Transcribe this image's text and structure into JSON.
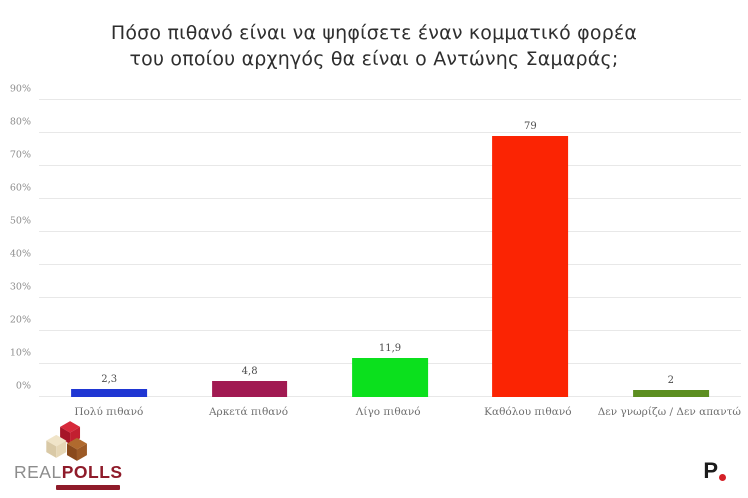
{
  "title": {
    "line1": "Πόσο πιθανό είναι να ψηφίσετε έναν κομματικό φορέα",
    "line2": "του οποίου αρχηγός θα είναι ο Αντώνης Σαμαράς;"
  },
  "chart_data": {
    "type": "bar",
    "title": "Πόσο πιθανό είναι να ψηφίσετε έναν κομματικό φορέα του οποίου αρχηγός θα είναι ο Αντώνης Σαμαράς;",
    "categories": [
      "Πολύ πιθανό",
      "Αρκετά πιθανό",
      "Λίγο πιθανό",
      "Καθόλου πιθανό",
      "Δεν γνωρίζω / Δεν απαντώ"
    ],
    "values": [
      2.3,
      4.8,
      11.9,
      79,
      2
    ],
    "value_labels": [
      "2,3",
      "4,8",
      "11,9",
      "79",
      "2"
    ],
    "bar_colors": [
      "#1f36d3",
      "#a11a52",
      "#0be01d",
      "#fb2403",
      "#5c8e20"
    ],
    "xlabel": "",
    "ylabel": "",
    "ylim": [
      0,
      90
    ],
    "ytick_step": 10,
    "ytick_labels": [
      "0%",
      "10%",
      "20%",
      "30%",
      "40%",
      "50%",
      "60%",
      "70%",
      "80%",
      "90%"
    ],
    "grid": true,
    "legend_position": "none"
  },
  "footer": {
    "realpolls": {
      "real": "REAL",
      "polls": "POLLS"
    },
    "p_logo_letter": "P"
  },
  "colors": {
    "grid_line": "#e8e8e8",
    "ytick_label": "#8d8d8d",
    "value_label": "#4d4d4d",
    "category_label": "#6f6f6f",
    "title_text": "#2e2e2e",
    "realpolls_real": "#8c8c8c",
    "realpolls_polls": "#8f1b2a",
    "p_dot": "#d42027"
  }
}
